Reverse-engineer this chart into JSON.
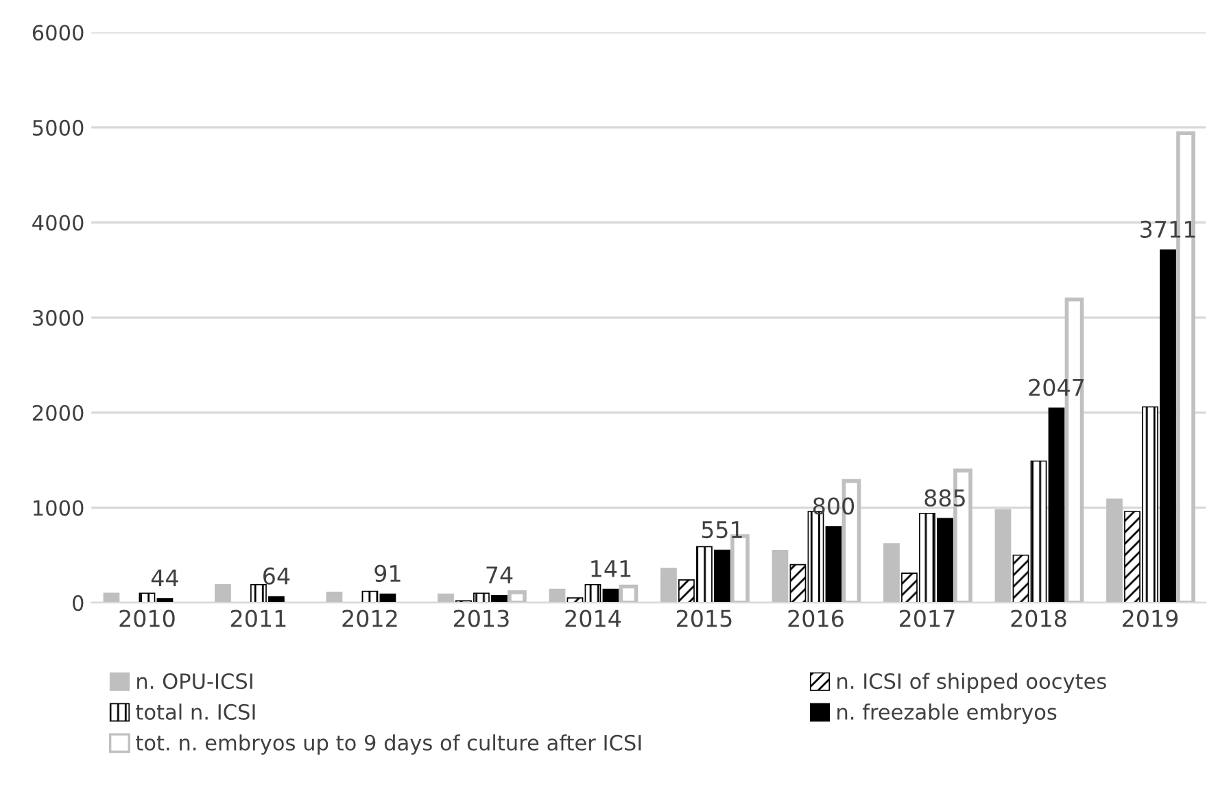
{
  "chart_data": {
    "type": "bar",
    "categories": [
      "2010",
      "2011",
      "2012",
      "2013",
      "2014",
      "2015",
      "2016",
      "2017",
      "2018",
      "2019"
    ],
    "series": [
      {
        "name": "n. OPU-ICSI",
        "color": "#bfbfbf",
        "values": [
          100,
          190,
          110,
          90,
          140,
          360,
          550,
          620,
          980,
          1090
        ]
      },
      {
        "name": "n. ICSI of shipped oocytes",
        "color": "#000000",
        "values": [
          null,
          null,
          null,
          20,
          50,
          240,
          400,
          310,
          500,
          960
        ]
      },
      {
        "name": "total n. ICSI",
        "color": "#000000",
        "values": [
          100,
          190,
          120,
          100,
          190,
          590,
          960,
          940,
          1490,
          2060
        ]
      },
      {
        "name": "n. freezable embryos",
        "color": "#000000",
        "values": [
          44,
          64,
          91,
          74,
          141,
          551,
          800,
          885,
          2047,
          3711
        ],
        "value_labels": [
          "44",
          "64",
          "91",
          "74",
          "141",
          "551",
          "800",
          "885",
          "2047",
          "3711"
        ]
      },
      {
        "name": "tot. n. embryos up to 9 days of culture after ICSI",
        "color": "#c0c0c0",
        "values": [
          null,
          null,
          null,
          110,
          170,
          700,
          1280,
          1390,
          3190,
          4940
        ]
      }
    ],
    "ylim": [
      0,
      6000
    ],
    "yticks": [
      0,
      1000,
      2000,
      3000,
      4000,
      5000,
      6000
    ],
    "grid": "y",
    "legend": "bottom"
  }
}
